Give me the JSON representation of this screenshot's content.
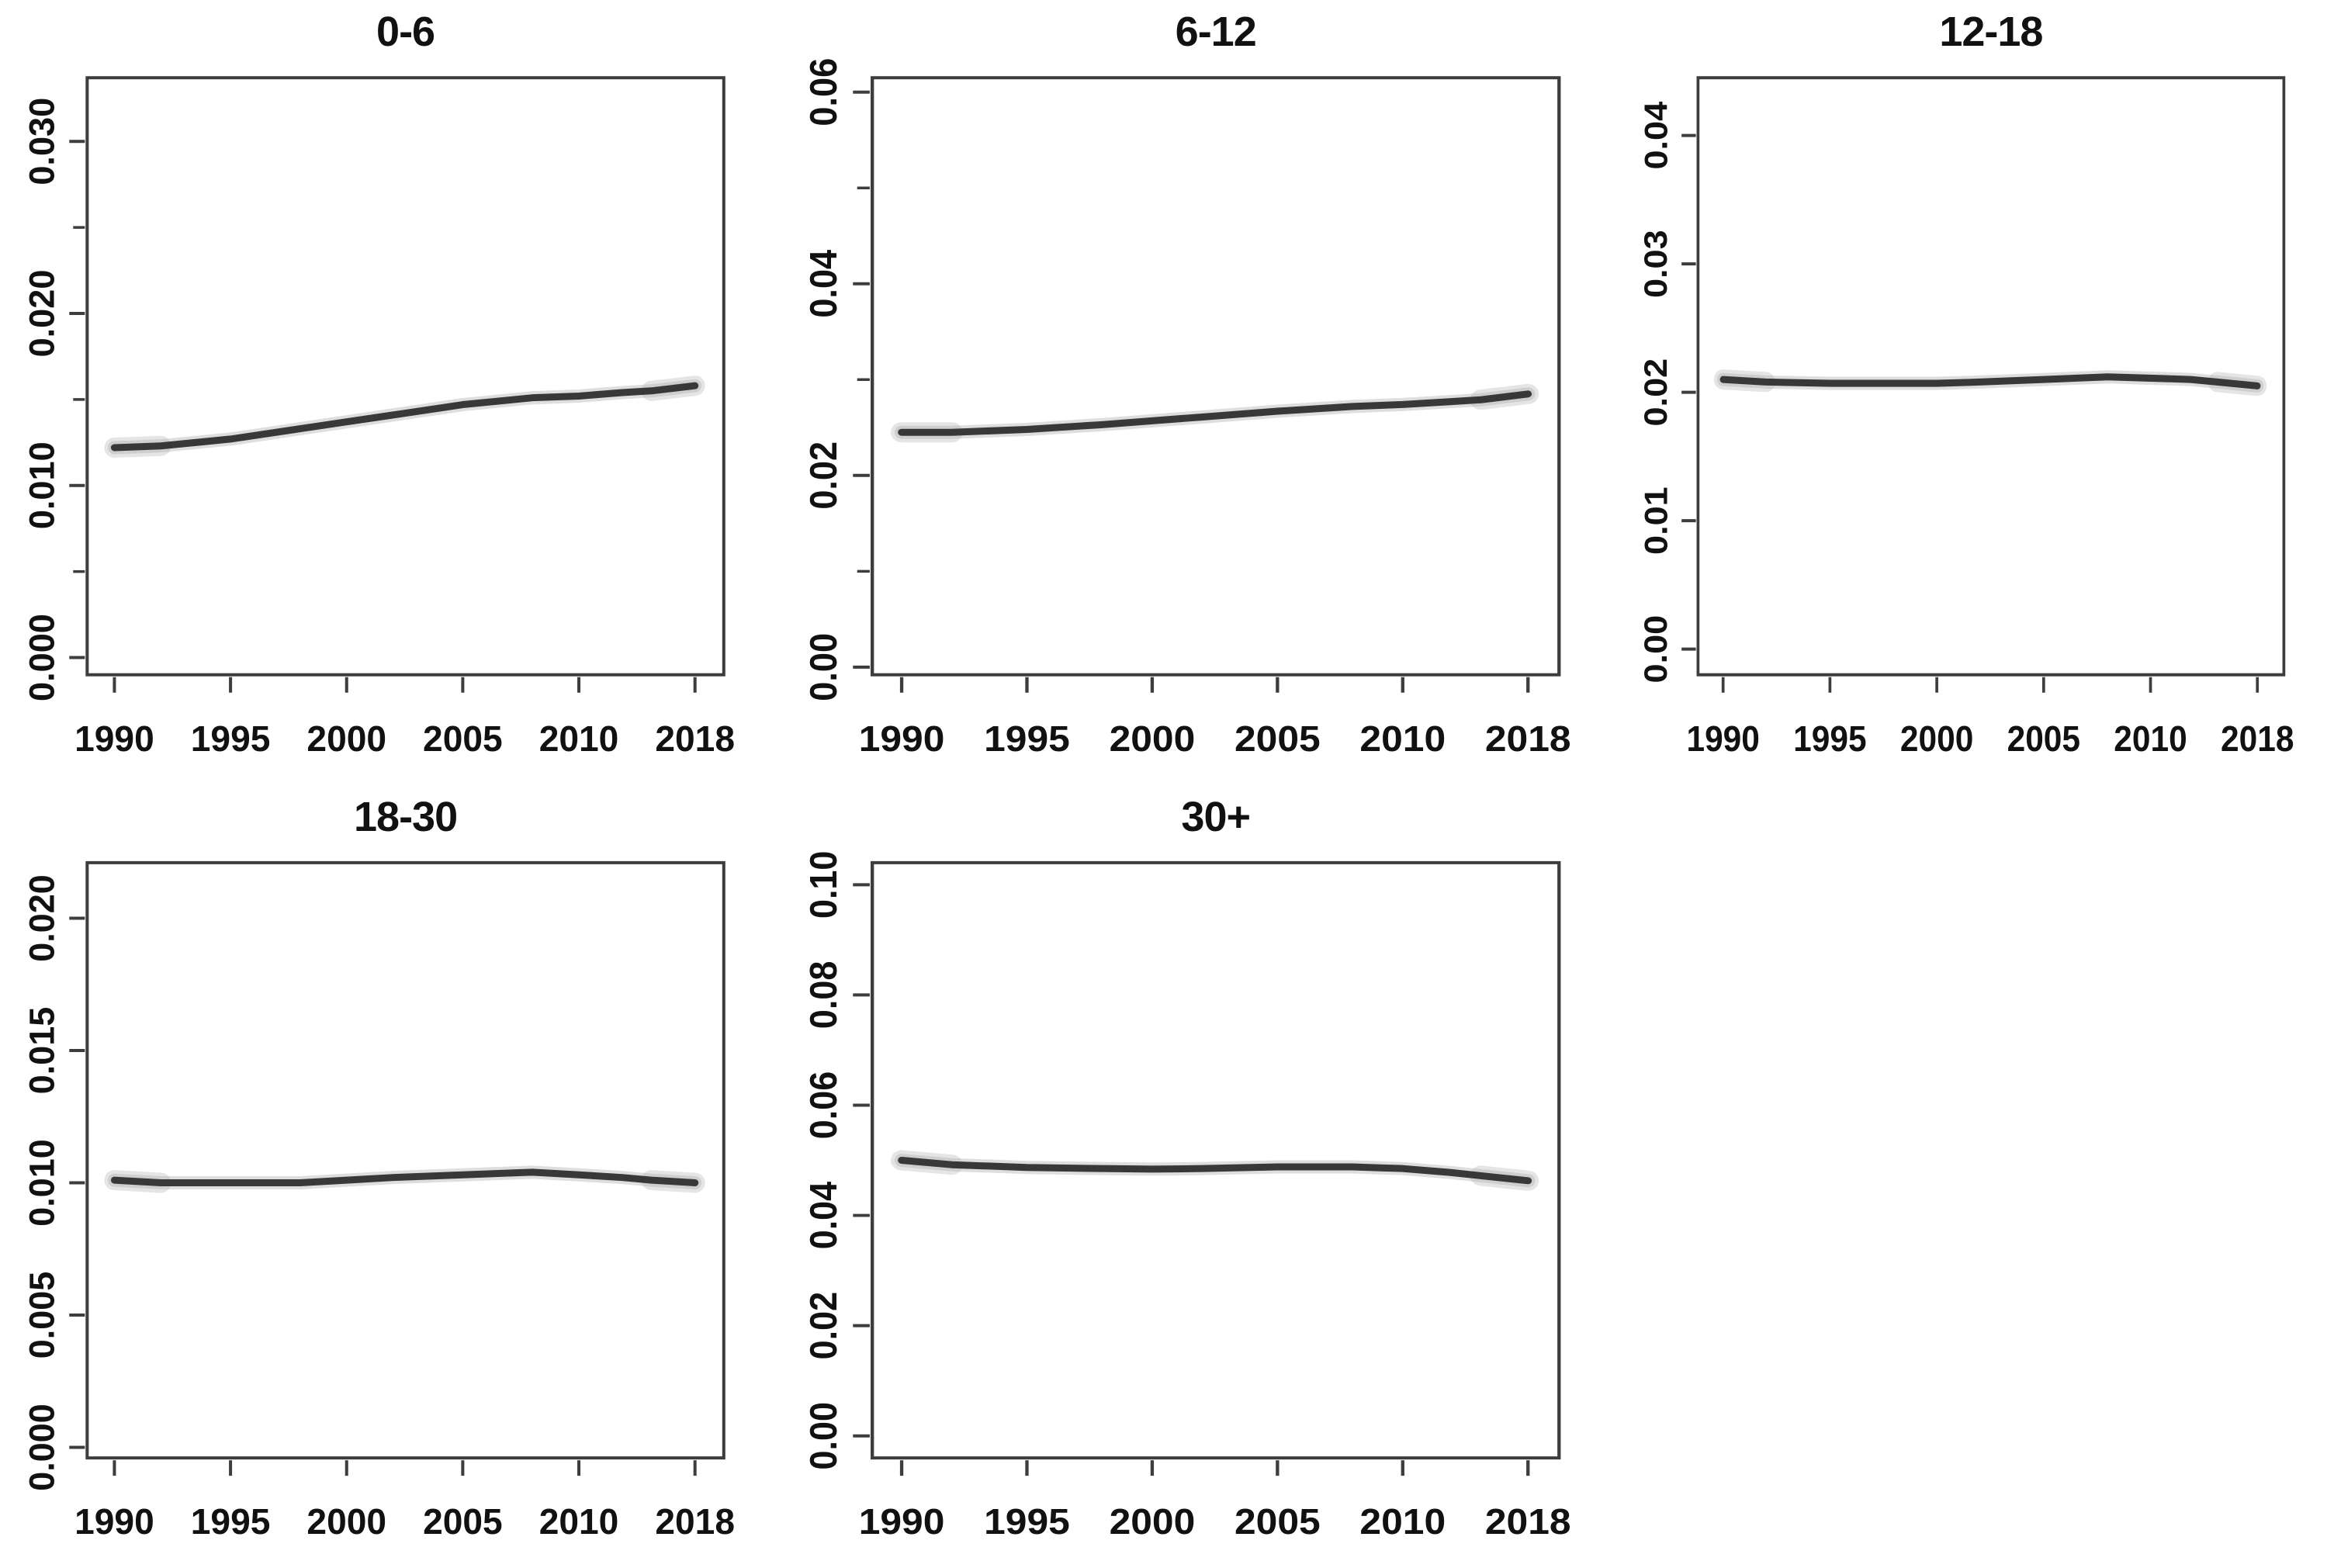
{
  "figure": {
    "background_color": "#ffffff",
    "axis_color": "#3d3d3d",
    "text_color": "#111111"
  },
  "chart_data": [
    {
      "type": "line",
      "title": "0-6",
      "x_tick_labels": [
        "1990",
        "1995",
        "2000",
        "2005",
        "2010",
        "2018"
      ],
      "x_tick_years": [
        1990,
        1995,
        2000,
        2005,
        2010,
        2018
      ],
      "y_tick_labels": [
        "0.000",
        "0.010",
        "0.020",
        "0.030"
      ],
      "y_tick_values": [
        0,
        0.01,
        0.02,
        0.03
      ],
      "y_minor_tick_values": [
        0.005,
        0.015,
        0.025
      ],
      "y_range": [
        -0.001,
        0.0337
      ],
      "x_years": [
        1990,
        1992,
        1995,
        1998,
        2000,
        2002,
        2005,
        2008,
        2010,
        2013,
        2015,
        2018
      ],
      "y_values": [
        0.0122,
        0.0123,
        0.0127,
        0.0133,
        0.0137,
        0.0141,
        0.0147,
        0.0151,
        0.0152,
        0.0154,
        0.0155,
        0.0158
      ],
      "line_color": "#383838",
      "band_color": "#b5b5b5"
    },
    {
      "type": "line",
      "title": "6-12",
      "x_tick_labels": [
        "1990",
        "1995",
        "2000",
        "2005",
        "2010",
        "2018"
      ],
      "x_tick_years": [
        1990,
        1995,
        2000,
        2005,
        2010,
        2018
      ],
      "y_tick_labels": [
        "0.00",
        "0.02",
        "0.04",
        "0.06"
      ],
      "y_tick_values": [
        0,
        0.02,
        0.04,
        0.06
      ],
      "y_minor_tick_values": [
        0.01,
        0.03,
        0.05
      ],
      "y_range": [
        -0.0008,
        0.0615
      ],
      "x_years": [
        1990,
        1992,
        1995,
        1998,
        2000,
        2002,
        2005,
        2008,
        2010,
        2013,
        2015,
        2018
      ],
      "y_values": [
        0.0245,
        0.0245,
        0.0248,
        0.0253,
        0.0257,
        0.0261,
        0.0267,
        0.0272,
        0.0274,
        0.0277,
        0.0279,
        0.0285
      ],
      "line_color": "#383838",
      "band_color": "#b5b5b5"
    },
    {
      "type": "line",
      "title": "12-18",
      "x_tick_labels": [
        "1990",
        "1995",
        "2000",
        "2005",
        "2010",
        "2018"
      ],
      "x_tick_years": [
        1990,
        1995,
        2000,
        2005,
        2010,
        2018
      ],
      "y_tick_labels": [
        "0.00",
        "0.01",
        "0.02",
        "0.03",
        "0.04"
      ],
      "y_tick_values": [
        0,
        0.01,
        0.02,
        0.03,
        0.04
      ],
      "y_minor_tick_values": [],
      "y_range": [
        -0.002,
        0.0445
      ],
      "x_years": [
        1990,
        1992,
        1995,
        1998,
        2000,
        2002,
        2005,
        2008,
        2010,
        2013,
        2015,
        2018
      ],
      "y_values": [
        0.021,
        0.0208,
        0.0207,
        0.0207,
        0.0207,
        0.0208,
        0.021,
        0.0212,
        0.0211,
        0.021,
        0.0208,
        0.0205
      ],
      "line_color": "#383838",
      "band_color": "#b5b5b5"
    },
    {
      "type": "line",
      "title": "18-30",
      "x_tick_labels": [
        "1990",
        "1995",
        "2000",
        "2005",
        "2010",
        "2018"
      ],
      "x_tick_years": [
        1990,
        1995,
        2000,
        2005,
        2010,
        2018
      ],
      "y_tick_labels": [
        "0.000",
        "0.005",
        "0.010",
        "0.015",
        "0.020"
      ],
      "y_tick_values": [
        0,
        0.005,
        0.01,
        0.015,
        0.02
      ],
      "y_minor_tick_values": [],
      "y_range": [
        -0.0004,
        0.0221
      ],
      "x_years": [
        1990,
        1992,
        1995,
        1998,
        2000,
        2002,
        2005,
        2008,
        2010,
        2013,
        2015,
        2018
      ],
      "y_values": [
        0.0101,
        0.01,
        0.01,
        0.01,
        0.0101,
        0.0102,
        0.0103,
        0.0104,
        0.0103,
        0.0102,
        0.0101,
        0.01
      ],
      "line_color": "#383838",
      "band_color": "#b5b5b5"
    },
    {
      "type": "line",
      "title": "30+",
      "x_tick_labels": [
        "1990",
        "1995",
        "2000",
        "2005",
        "2010",
        "2018"
      ],
      "x_tick_years": [
        1990,
        1995,
        2000,
        2005,
        2010,
        2018
      ],
      "y_tick_labels": [
        "0.00",
        "0.02",
        "0.04",
        "0.06",
        "0.08",
        "0.10"
      ],
      "y_tick_values": [
        0,
        0.02,
        0.04,
        0.06,
        0.08,
        0.1
      ],
      "y_minor_tick_values": [],
      "y_range": [
        -0.004,
        0.104
      ],
      "x_years": [
        1990,
        1992,
        1995,
        1998,
        2000,
        2002,
        2005,
        2008,
        2010,
        2013,
        2015,
        2018
      ],
      "y_values": [
        0.05,
        0.0492,
        0.0487,
        0.0485,
        0.0484,
        0.0485,
        0.0488,
        0.0488,
        0.0485,
        0.0478,
        0.0472,
        0.0463
      ],
      "line_color": "#383838",
      "band_color": "#b5b5b5"
    }
  ]
}
